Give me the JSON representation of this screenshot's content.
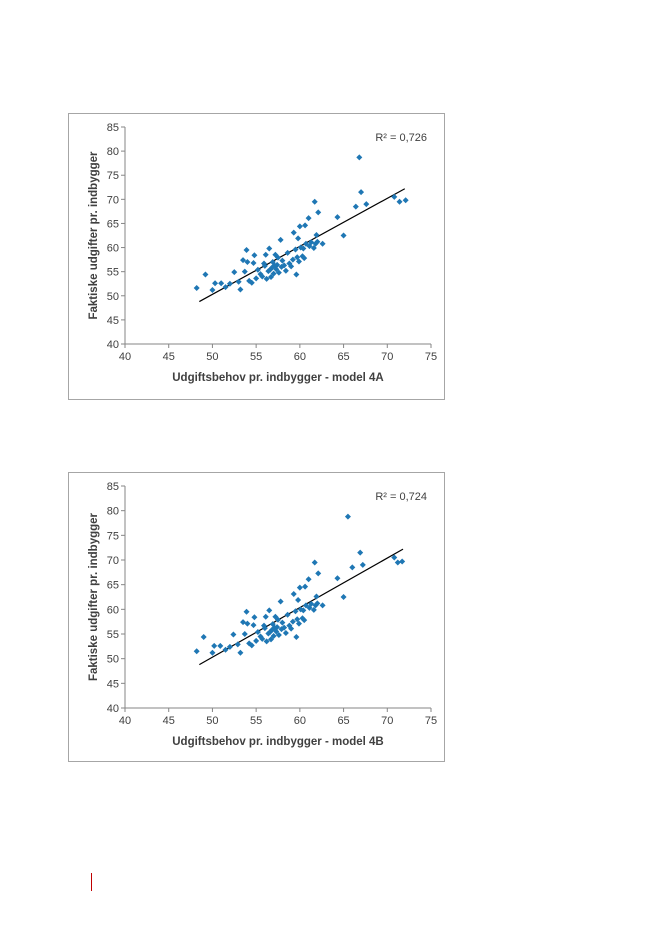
{
  "chart_data": [
    {
      "type": "scatter",
      "xlabel": "Udgiftsbehov pr. indbygger - model 4A",
      "ylabel": "Faktiske udgifter pr. indbygger",
      "annotation": "R² = 0,726",
      "xlim": [
        40,
        75
      ],
      "ylim": [
        40,
        85
      ],
      "xticks": [
        "40",
        "45",
        "50",
        "55",
        "60",
        "65",
        "70",
        "75"
      ],
      "yticks": [
        "40",
        "45",
        "50",
        "55",
        "60",
        "65",
        "70",
        "75",
        "80",
        "85"
      ],
      "marker_color": "#1f77b4",
      "trendline_color": "#000000",
      "grid": false,
      "trendline": {
        "x": [
          48.5,
          72.0
        ],
        "y": [
          48.8,
          72.2
        ]
      },
      "points": [
        [
          48.2,
          51.6
        ],
        [
          49.2,
          54.4
        ],
        [
          50.0,
          51.2
        ],
        [
          50.3,
          52.6
        ],
        [
          51.0,
          52.6
        ],
        [
          51.5,
          51.8
        ],
        [
          52.0,
          52.5
        ],
        [
          52.5,
          54.9
        ],
        [
          53.0,
          52.9
        ],
        [
          53.2,
          51.3
        ],
        [
          53.5,
          57.4
        ],
        [
          53.7,
          55.0
        ],
        [
          53.9,
          59.5
        ],
        [
          54.0,
          57.0
        ],
        [
          54.2,
          53.1
        ],
        [
          54.5,
          52.7
        ],
        [
          54.7,
          56.8
        ],
        [
          54.8,
          58.4
        ],
        [
          55.0,
          53.6
        ],
        [
          55.2,
          55.4
        ],
        [
          55.5,
          54.5
        ],
        [
          55.7,
          54.0
        ],
        [
          55.9,
          56.7
        ],
        [
          56.0,
          56.2
        ],
        [
          56.1,
          58.5
        ],
        [
          56.2,
          53.5
        ],
        [
          56.4,
          55.1
        ],
        [
          56.5,
          59.8
        ],
        [
          56.6,
          55.4
        ],
        [
          56.7,
          53.9
        ],
        [
          56.8,
          55.8
        ],
        [
          56.9,
          57.0
        ],
        [
          57.0,
          54.6
        ],
        [
          57.1,
          56.3
        ],
        [
          57.2,
          58.5
        ],
        [
          57.3,
          55.5
        ],
        [
          57.4,
          56.4
        ],
        [
          57.5,
          57.9
        ],
        [
          57.6,
          54.8
        ],
        [
          57.8,
          61.6
        ],
        [
          57.9,
          56.0
        ],
        [
          58.0,
          57.3
        ],
        [
          58.2,
          56.3
        ],
        [
          58.4,
          55.2
        ],
        [
          58.6,
          58.9
        ],
        [
          58.8,
          56.7
        ],
        [
          59.0,
          56.1
        ],
        [
          59.2,
          57.5
        ],
        [
          59.3,
          63.1
        ],
        [
          59.5,
          59.6
        ],
        [
          59.6,
          54.4
        ],
        [
          59.7,
          58.0
        ],
        [
          59.8,
          61.9
        ],
        [
          59.9,
          57.1
        ],
        [
          60.0,
          64.4
        ],
        [
          60.1,
          60.0
        ],
        [
          60.3,
          58.2
        ],
        [
          60.4,
          59.8
        ],
        [
          60.5,
          57.8
        ],
        [
          60.6,
          64.6
        ],
        [
          60.7,
          60.8
        ],
        [
          61.0,
          66.1
        ],
        [
          61.1,
          60.3
        ],
        [
          61.3,
          61.1
        ],
        [
          61.6,
          59.9
        ],
        [
          61.7,
          69.5
        ],
        [
          61.8,
          60.8
        ],
        [
          61.9,
          62.6
        ],
        [
          62.0,
          61.2
        ],
        [
          62.1,
          67.3
        ],
        [
          62.6,
          60.8
        ],
        [
          64.3,
          66.3
        ],
        [
          65.0,
          62.5
        ],
        [
          66.4,
          68.5
        ],
        [
          66.8,
          78.7
        ],
        [
          67.0,
          71.5
        ],
        [
          67.6,
          69.0
        ],
        [
          70.8,
          70.5
        ],
        [
          71.4,
          69.5
        ],
        [
          72.1,
          69.8
        ]
      ]
    },
    {
      "type": "scatter",
      "xlabel": "Udgiftsbehov pr. indbygger - model 4B",
      "ylabel": "Faktiske udgifter pr. indbygger",
      "annotation": "R² = 0,724",
      "xlim": [
        40,
        75
      ],
      "ylim": [
        40,
        85
      ],
      "xticks": [
        "40",
        "45",
        "50",
        "55",
        "60",
        "65",
        "70",
        "75"
      ],
      "yticks": [
        "40",
        "45",
        "50",
        "55",
        "60",
        "65",
        "70",
        "75",
        "80",
        "85"
      ],
      "marker_color": "#1f77b4",
      "trendline_color": "#000000",
      "grid": false,
      "trendline": {
        "x": [
          48.5,
          71.8
        ],
        "y": [
          48.8,
          72.2
        ]
      },
      "points": [
        [
          48.2,
          51.5
        ],
        [
          49.0,
          54.4
        ],
        [
          50.0,
          51.2
        ],
        [
          50.2,
          52.6
        ],
        [
          50.9,
          52.6
        ],
        [
          51.5,
          51.8
        ],
        [
          52.0,
          52.4
        ],
        [
          52.4,
          54.9
        ],
        [
          52.9,
          52.9
        ],
        [
          53.2,
          51.2
        ],
        [
          53.5,
          57.4
        ],
        [
          53.7,
          55.0
        ],
        [
          53.9,
          59.5
        ],
        [
          54.0,
          57.1
        ],
        [
          54.2,
          53.1
        ],
        [
          54.5,
          52.7
        ],
        [
          54.7,
          56.8
        ],
        [
          54.8,
          58.4
        ],
        [
          55.0,
          53.6
        ],
        [
          55.2,
          55.4
        ],
        [
          55.5,
          54.5
        ],
        [
          55.7,
          54.0
        ],
        [
          55.9,
          56.7
        ],
        [
          56.0,
          56.2
        ],
        [
          56.1,
          58.5
        ],
        [
          56.2,
          53.5
        ],
        [
          56.4,
          55.1
        ],
        [
          56.5,
          59.8
        ],
        [
          56.6,
          55.4
        ],
        [
          56.7,
          53.9
        ],
        [
          56.8,
          55.8
        ],
        [
          56.9,
          57.0
        ],
        [
          57.0,
          54.6
        ],
        [
          57.1,
          56.3
        ],
        [
          57.2,
          58.5
        ],
        [
          57.3,
          55.5
        ],
        [
          57.4,
          56.4
        ],
        [
          57.5,
          57.9
        ],
        [
          57.6,
          54.8
        ],
        [
          57.8,
          61.6
        ],
        [
          57.9,
          56.0
        ],
        [
          58.0,
          57.3
        ],
        [
          58.2,
          56.3
        ],
        [
          58.4,
          55.2
        ],
        [
          58.6,
          58.9
        ],
        [
          58.8,
          56.7
        ],
        [
          59.0,
          56.1
        ],
        [
          59.2,
          57.5
        ],
        [
          59.3,
          63.1
        ],
        [
          59.5,
          59.6
        ],
        [
          59.6,
          54.4
        ],
        [
          59.7,
          58.0
        ],
        [
          59.8,
          61.9
        ],
        [
          59.9,
          57.1
        ],
        [
          60.0,
          64.4
        ],
        [
          60.1,
          60.0
        ],
        [
          60.3,
          58.2
        ],
        [
          60.4,
          59.8
        ],
        [
          60.5,
          57.8
        ],
        [
          60.6,
          64.6
        ],
        [
          60.7,
          60.8
        ],
        [
          61.0,
          66.1
        ],
        [
          61.1,
          60.3
        ],
        [
          61.3,
          61.1
        ],
        [
          61.6,
          59.9
        ],
        [
          61.7,
          69.5
        ],
        [
          61.8,
          60.8
        ],
        [
          61.9,
          62.6
        ],
        [
          62.0,
          61.2
        ],
        [
          62.1,
          67.3
        ],
        [
          62.6,
          60.8
        ],
        [
          64.3,
          66.3
        ],
        [
          65.0,
          62.5
        ],
        [
          65.5,
          78.8
        ],
        [
          66.0,
          68.5
        ],
        [
          66.9,
          71.5
        ],
        [
          67.2,
          69.0
        ],
        [
          70.8,
          70.5
        ],
        [
          71.2,
          69.5
        ],
        [
          71.7,
          69.7
        ]
      ]
    }
  ]
}
